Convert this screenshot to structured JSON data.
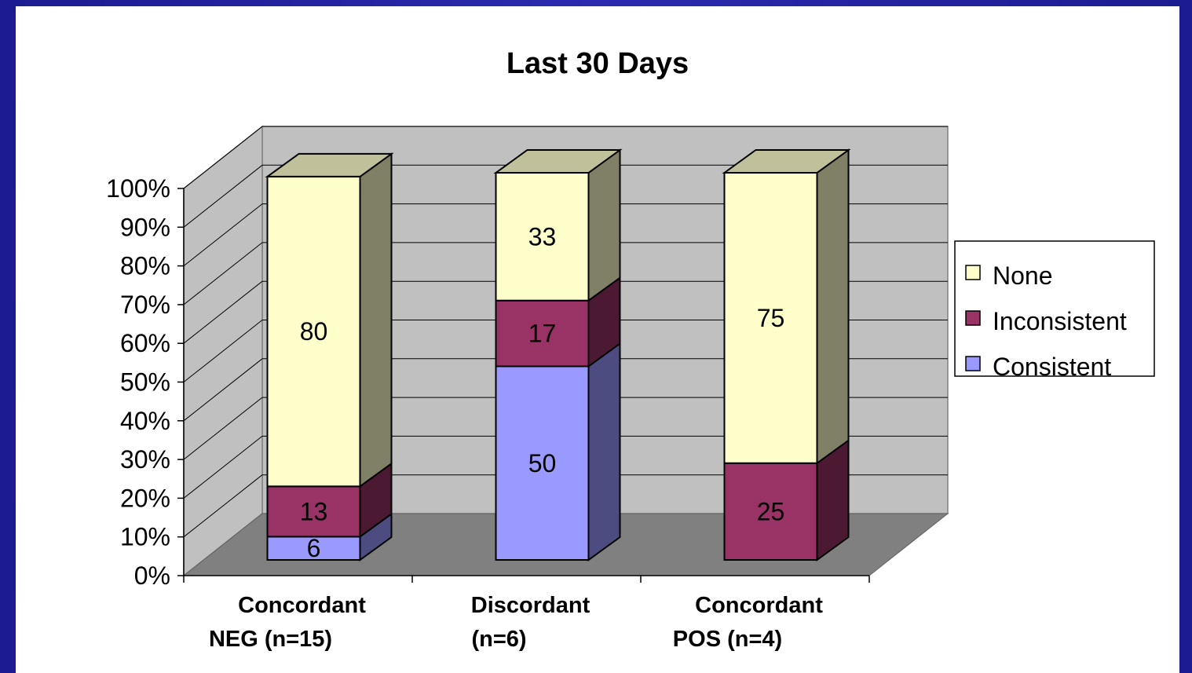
{
  "chart_data": {
    "type": "bar",
    "stacked": true,
    "percent": true,
    "three_d": true,
    "title": "Last 30 Days",
    "categories": [
      [
        "Concordant",
        "NEG (n=15)"
      ],
      [
        "Discordant",
        "(n=6)"
      ],
      [
        "Concordant",
        "POS (n=4)"
      ]
    ],
    "series": [
      {
        "name": "Consistent",
        "values": [
          6,
          50,
          0
        ],
        "color": "#9999ff",
        "side_color": "#4c4c80",
        "top_color": "#ccccff"
      },
      {
        "name": "Inconsistent",
        "values": [
          13,
          17,
          25
        ],
        "color": "#993366",
        "side_color": "#4c1933",
        "top_color": "#cc6699"
      },
      {
        "name": "None",
        "values": [
          80,
          33,
          75
        ],
        "color": "#ffffcc",
        "side_color": "#808066",
        "top_color": "#c0c09a"
      }
    ],
    "y_ticks": [
      "0%",
      "10%",
      "20%",
      "30%",
      "40%",
      "50%",
      "60%",
      "70%",
      "80%",
      "90%",
      "100%"
    ],
    "ylim": [
      0,
      100
    ],
    "legend_position": "right",
    "legend_order": [
      "None",
      "Inconsistent",
      "Consistent"
    ],
    "grid": true
  }
}
